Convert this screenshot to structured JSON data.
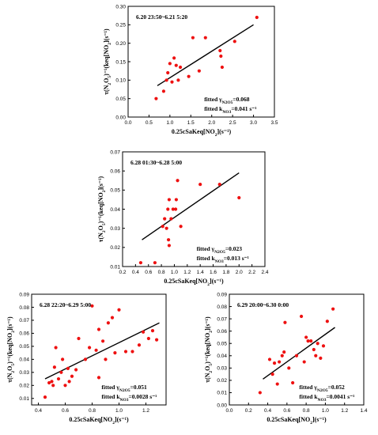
{
  "chart_data": [
    {
      "type": "scatter",
      "title": "6.20 23:50~6.21 5:20",
      "xlabel": "0.25cSaKeq[NO2](s^-1)",
      "ylabel": "τ(N2O5)^-1(keq[NO2])(s^-1)",
      "xlim": [
        0.0,
        3.5
      ],
      "ylim": [
        0.0,
        0.3
      ],
      "xticks": [
        "0.0",
        "0.5",
        "1.0",
        "1.5",
        "2.0",
        "2.5",
        "3.0",
        "3.5"
      ],
      "yticks": [
        "0.00",
        "0.05",
        "0.10",
        "0.15",
        "0.20",
        "0.25",
        "0.30"
      ],
      "annotations": [
        "fitted γN2O5=0.068",
        "fitted kNO3=0.041 s^-1"
      ],
      "fit": [
        [
          0.7,
          0.085
        ],
        [
          3.0,
          0.25
        ]
      ],
      "points": [
        [
          0.67,
          0.05
        ],
        [
          0.85,
          0.07
        ],
        [
          0.92,
          0.1
        ],
        [
          0.95,
          0.12
        ],
        [
          1.0,
          0.145
        ],
        [
          1.05,
          0.095
        ],
        [
          1.1,
          0.16
        ],
        [
          1.15,
          0.14
        ],
        [
          1.2,
          0.1
        ],
        [
          1.25,
          0.135
        ],
        [
          1.45,
          0.11
        ],
        [
          1.55,
          0.215
        ],
        [
          1.7,
          0.125
        ],
        [
          1.85,
          0.215
        ],
        [
          2.2,
          0.18
        ],
        [
          2.22,
          0.165
        ],
        [
          2.25,
          0.135
        ],
        [
          2.55,
          0.205
        ],
        [
          3.08,
          0.27
        ]
      ]
    },
    {
      "type": "scatter",
      "title": "6.28 01:30~6.28 5:00",
      "xlabel": "0.25cSaKeq[NO2](s^-1)",
      "ylabel": "τ(N2O5)^-1(keq[NO2])(s^-1)",
      "xlim": [
        0.2,
        2.4
      ],
      "ylim": [
        0.01,
        0.07
      ],
      "xticks": [
        "0.2",
        "0.4",
        "0.6",
        "0.8",
        "1.0",
        "1.2",
        "1.4",
        "1.6",
        "1.8",
        "2.0",
        "2.2",
        "2.4"
      ],
      "yticks": [
        "0.01",
        "0.02",
        "0.03",
        "0.04",
        "0.05",
        "0.06",
        "0.07"
      ],
      "annotations": [
        "fitted γN2O5=0.023",
        "fitted kNO3=0.013 s^-1"
      ],
      "fit": [
        [
          0.5,
          0.024
        ],
        [
          2.0,
          0.059
        ]
      ],
      "points": [
        [
          0.48,
          0.012
        ],
        [
          0.7,
          0.012
        ],
        [
          0.82,
          0.031
        ],
        [
          0.85,
          0.035
        ],
        [
          0.88,
          0.03
        ],
        [
          0.9,
          0.04
        ],
        [
          0.91,
          0.024
        ],
        [
          0.92,
          0.045
        ],
        [
          0.92,
          0.021
        ],
        [
          0.95,
          0.035
        ],
        [
          0.98,
          0.04
        ],
        [
          1.02,
          0.04
        ],
        [
          1.03,
          0.045
        ],
        [
          1.05,
          0.055
        ],
        [
          1.1,
          0.031
        ],
        [
          1.4,
          0.053
        ],
        [
          1.7,
          0.053
        ],
        [
          2.0,
          0.046
        ]
      ]
    },
    {
      "type": "scatter",
      "title": "6.28 22:20~6.29 5:00",
      "xlabel": "0.25cSaKeq[NO2](s^-1)",
      "ylabel": "τ(N2O5)^-1(keq[NO2])(s^-1)",
      "xlim": [
        0.35,
        1.35
      ],
      "ylim": [
        0.005,
        0.09
      ],
      "xticks": [
        "0.4",
        "0.6",
        "0.8",
        "1.0",
        "1.2"
      ],
      "yticks": [
        "0.01",
        "0.02",
        "0.03",
        "0.04",
        "0.05",
        "0.06",
        "0.07",
        "0.08",
        "0.09"
      ],
      "annotations": [
        "fitted γN2O5=0.051",
        "fitted kNO3=0.0028 s^-1"
      ],
      "fit": [
        [
          0.45,
          0.025
        ],
        [
          1.3,
          0.068
        ]
      ],
      "points": [
        [
          0.45,
          0.011
        ],
        [
          0.48,
          0.022
        ],
        [
          0.5,
          0.023
        ],
        [
          0.51,
          0.02
        ],
        [
          0.52,
          0.034
        ],
        [
          0.53,
          0.049
        ],
        [
          0.55,
          0.025
        ],
        [
          0.57,
          0.03
        ],
        [
          0.58,
          0.04
        ],
        [
          0.6,
          0.02
        ],
        [
          0.62,
          0.033
        ],
        [
          0.63,
          0.023
        ],
        [
          0.65,
          0.027
        ],
        [
          0.68,
          0.032
        ],
        [
          0.7,
          0.056
        ],
        [
          0.75,
          0.04
        ],
        [
          0.78,
          0.049
        ],
        [
          0.8,
          0.081
        ],
        [
          0.83,
          0.047
        ],
        [
          0.85,
          0.063
        ],
        [
          0.85,
          0.026
        ],
        [
          0.88,
          0.054
        ],
        [
          0.9,
          0.04
        ],
        [
          0.92,
          0.068
        ],
        [
          0.95,
          0.072
        ],
        [
          0.97,
          0.045
        ],
        [
          1.0,
          0.078
        ],
        [
          1.05,
          0.046
        ],
        [
          1.1,
          0.046
        ],
        [
          1.15,
          0.051
        ],
        [
          1.18,
          0.061
        ],
        [
          1.22,
          0.056
        ],
        [
          1.25,
          0.062
        ],
        [
          1.28,
          0.055
        ]
      ]
    },
    {
      "type": "scatter",
      "title": "6.29 20:00~6.30 0:00",
      "xlabel": "0.25cSaKeq[NO2](s^-1)",
      "ylabel": "τ(N2O5)^-1(keq[NO2])(s^-1)",
      "xlim": [
        0.0,
        1.4
      ],
      "ylim": [
        0.0,
        0.09
      ],
      "xticks": [
        "0.0",
        "0.2",
        "0.4",
        "0.6",
        "0.8",
        "1.0",
        "1.2",
        "1.4"
      ],
      "yticks": [
        "0.00",
        "0.01",
        "0.02",
        "0.03",
        "0.04",
        "0.05",
        "0.06",
        "0.07",
        "0.08",
        "0.09"
      ],
      "annotations": [
        "fitted γN2O5=0.052",
        "fitted kNO3=0.0041 s^-1"
      ],
      "fit": [
        [
          0.35,
          0.021
        ],
        [
          1.1,
          0.063
        ]
      ],
      "points": [
        [
          0.32,
          0.01
        ],
        [
          0.42,
          0.037
        ],
        [
          0.45,
          0.025
        ],
        [
          0.47,
          0.034
        ],
        [
          0.5,
          0.017
        ],
        [
          0.52,
          0.035
        ],
        [
          0.55,
          0.04
        ],
        [
          0.57,
          0.043
        ],
        [
          0.58,
          0.067
        ],
        [
          0.62,
          0.03
        ],
        [
          0.66,
          0.018
        ],
        [
          0.7,
          0.04
        ],
        [
          0.75,
          0.072
        ],
        [
          0.78,
          0.035
        ],
        [
          0.8,
          0.055
        ],
        [
          0.82,
          0.052
        ],
        [
          0.85,
          0.052
        ],
        [
          0.88,
          0.045
        ],
        [
          0.9,
          0.04
        ],
        [
          0.92,
          0.05
        ],
        [
          0.95,
          0.038
        ],
        [
          0.98,
          0.048
        ],
        [
          1.02,
          0.068
        ],
        [
          1.08,
          0.078
        ]
      ]
    }
  ]
}
